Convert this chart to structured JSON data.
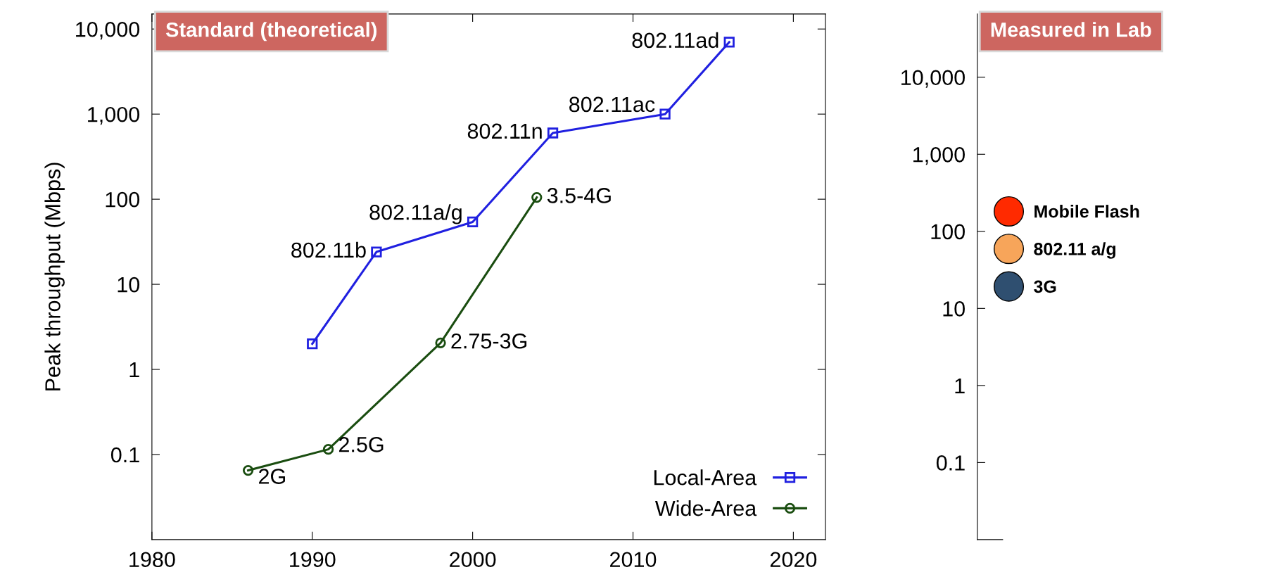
{
  "chart_data": [
    {
      "type": "line",
      "title": "Standard (theoretical)",
      "ylabel": "Peak throughput (Mbps)",
      "log": "y",
      "xlim": [
        1980,
        2022
      ],
      "xticks": [
        1980,
        1990,
        2000,
        2010,
        2020
      ],
      "ylim": [
        0.01,
        15000
      ],
      "yticks": [
        {
          "value": 0.1,
          "label": "0.1"
        },
        {
          "value": 1,
          "label": "1"
        },
        {
          "value": 10,
          "label": "10"
        },
        {
          "value": 100,
          "label": "100"
        },
        {
          "value": 1000,
          "label": "1,000"
        },
        {
          "value": 10000,
          "label": "10,000"
        }
      ],
      "grid": false,
      "legend": "bottom right",
      "series": [
        {
          "name": "Local-Area",
          "color": "#2020e0",
          "marker": "square",
          "x": [
            1990,
            1994,
            2000,
            2005,
            2012,
            2016
          ],
          "values": [
            2,
            24,
            54,
            600,
            1000,
            7000
          ]
        },
        {
          "name": "Wide-Area",
          "color": "#1a4d10",
          "marker": "circle",
          "x": [
            1986,
            1991,
            1998,
            2004
          ],
          "values": [
            0.065,
            0.115,
            2.05,
            105
          ]
        }
      ],
      "annotations": [
        {
          "text": "802.11b",
          "x": 1994,
          "y": 24
        },
        {
          "text": "802.11a/g",
          "x": 2000,
          "y": 54
        },
        {
          "text": "802.11n",
          "x": 2005,
          "y": 600
        },
        {
          "text": "802.11ac",
          "x": 2012,
          "y": 1000
        },
        {
          "text": "802.11ad",
          "x": 2016,
          "y": 7000
        },
        {
          "text": "2G",
          "x": 1986,
          "y": 0.065
        },
        {
          "text": "2.5G",
          "x": 1991,
          "y": 0.115
        },
        {
          "text": "2.75-3G",
          "x": 1998,
          "y": 2.05
        },
        {
          "text": "3.5-4G",
          "x": 2004,
          "y": 105
        }
      ]
    },
    {
      "type": "other",
      "title": "Measured in Lab",
      "annotations": [
        "10,000",
        "1,000",
        "100",
        "10",
        "1",
        "0.1"
      ],
      "legend": "left",
      "series": [
        {
          "name": "Mobile Flash",
          "color": "#ff2a00"
        },
        {
          "name": "802.11 a/g",
          "color": "#f7a55a"
        },
        {
          "name": "3G",
          "color": "#2f4f70"
        }
      ]
    }
  ]
}
